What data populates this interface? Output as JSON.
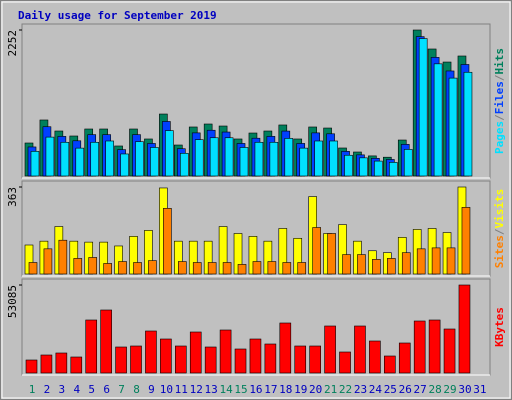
{
  "chart_data": {
    "type": "bar",
    "title": "Daily usage for September 2019",
    "categories": [
      "1",
      "2",
      "3",
      "4",
      "5",
      "6",
      "7",
      "8",
      "9",
      "10",
      "11",
      "12",
      "13",
      "14",
      "15",
      "16",
      "17",
      "18",
      "19",
      "20",
      "21",
      "22",
      "23",
      "24",
      "25",
      "26",
      "27",
      "28",
      "29",
      "30",
      "31"
    ],
    "category_colors": [
      "#00805c",
      "#0000c0",
      "#0000c0",
      "#0000c0",
      "#0000c0",
      "#0000c0",
      "#00805c",
      "#00805c",
      "#0000c0",
      "#0000c0",
      "#0000c0",
      "#0000c0",
      "#0000c0",
      "#00805c",
      "#00805c",
      "#0000c0",
      "#0000c0",
      "#0000c0",
      "#0000c0",
      "#0000c0",
      "#00805c",
      "#00805c",
      "#0000c0",
      "#0000c0",
      "#0000c0",
      "#0000c0",
      "#0000c0",
      "#00805c",
      "#00805c",
      "#0000c0",
      "#0000c0"
    ],
    "panels": [
      {
        "ylim": [
          0,
          2252
        ],
        "yticks": [
          2252
        ],
        "legend_separator": "/",
        "series": [
          {
            "name": "Hits",
            "color": "#00805c",
            "values": [
              509,
              864,
              694,
              617,
              725,
              725,
              463,
              725,
              571,
              956,
              478,
              756,
              802,
              771,
              571,
              663,
              694,
              787,
              571,
              756,
              740,
              432,
              370,
              310,
              290,
              555,
              2252,
              1959,
              1758,
              1851,
              0
            ]
          },
          {
            "name": "Files",
            "color": "#0040ff",
            "values": [
              448,
              760,
              611,
              543,
              638,
              638,
              407,
              638,
              502,
              841,
              421,
              665,
              706,
              678,
              502,
              583,
              611,
              693,
              502,
              665,
              651,
              380,
              326,
              273,
              255,
              488,
              2150,
              1830,
              1620,
              1720,
              0
            ]
          },
          {
            "name": "Pages",
            "color": "#00e0ff",
            "values": [
              380,
              600,
              520,
              430,
              520,
              540,
              340,
              530,
              440,
              700,
              350,
              560,
              590,
              590,
              440,
              520,
              520,
              580,
              430,
              540,
              540,
              320,
              280,
              230,
              210,
              410,
              2120,
              1730,
              1510,
              1600,
              0
            ]
          }
        ]
      },
      {
        "ylim": [
          0,
          363
        ],
        "yticks": [
          363
        ],
        "legend_separator": "/",
        "series": [
          {
            "name": "Visits",
            "color": "#ffff00",
            "values": [
              121,
              137,
              198,
              137,
              133,
              133,
              117,
              157,
              182,
              359,
              137,
              137,
              137,
              198,
              169,
              157,
              137,
              190,
              149,
              323,
              169,
              206,
              137,
              97,
              89,
              153,
              186,
              190,
              173,
              363,
              0
            ]
          },
          {
            "name": "Sites",
            "color": "#ff8000",
            "values": [
              48,
              105,
              141,
              65,
              69,
              44,
              52,
              48,
              56,
              274,
              52,
              48,
              48,
              48,
              40,
              52,
              52,
              48,
              48,
              194,
              169,
              81,
              81,
              61,
              65,
              89,
              105,
              109,
              109,
              278,
              0
            ]
          }
        ]
      },
      {
        "ylim": [
          0,
          53085
        ],
        "yticks": [
          53085
        ],
        "series": [
          {
            "name": "KBytes",
            "color": "#ff0000",
            "values": [
              7842,
              10858,
              12065,
              9652,
              31972,
              38004,
              15684,
              16288,
              25336,
              20510,
              16288,
              24733,
              15684,
              25939,
              14478,
              20510,
              17494,
              30162,
              16288,
              16288,
              28352,
              12668,
              28352,
              19304,
              10255,
              18097,
              31368,
              31972,
              26543,
              53085,
              0
            ]
          }
        ]
      }
    ]
  }
}
